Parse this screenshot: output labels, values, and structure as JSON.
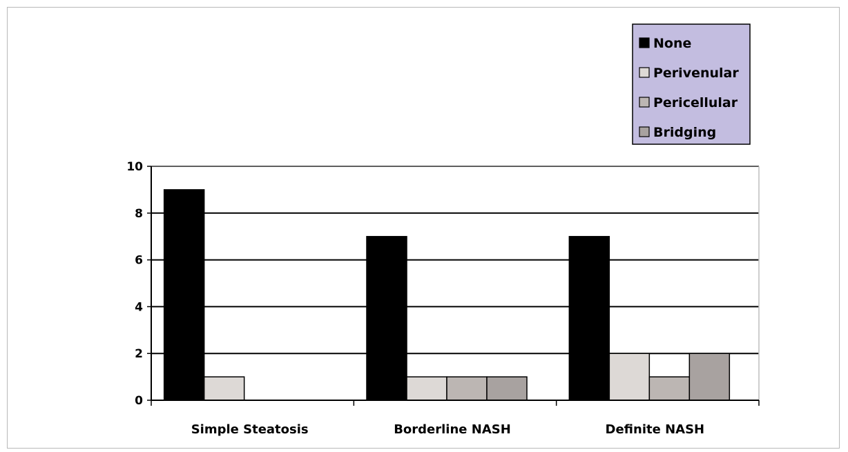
{
  "chart_data": {
    "type": "bar",
    "title": "",
    "xlabel": "",
    "ylabel": "",
    "categories": [
      "Simple Steatosis",
      "Borderline NASH",
      "Definite NASH"
    ],
    "series": [
      {
        "name": "None",
        "values": [
          9,
          7,
          7
        ],
        "color": "#000000"
      },
      {
        "name": "Perivenular",
        "values": [
          1,
          1,
          2
        ],
        "color": "#ddd9d6"
      },
      {
        "name": "Pericellular",
        "values": [
          0,
          1,
          1
        ],
        "color": "#bcb6b3"
      },
      {
        "name": "Bridging",
        "values": [
          0,
          1,
          2
        ],
        "color": "#a8a2a0"
      }
    ],
    "ylim": [
      0,
      10
    ],
    "yticks": [
      0,
      2,
      4,
      6,
      8,
      10
    ],
    "grid": true,
    "legend_position": "top-right",
    "legend_background": "#c3bde0"
  }
}
